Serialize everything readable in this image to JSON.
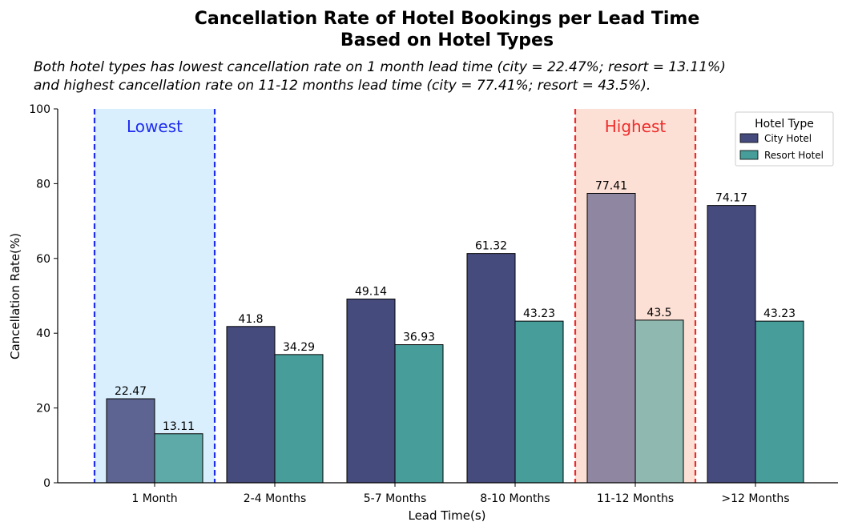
{
  "chart_data": {
    "type": "bar",
    "title_lines": [
      "Cancellation Rate of Hotel Bookings per Lead Time",
      "Based on Hotel Types"
    ],
    "subtitle_lines": [
      "Both hotel types has lowest cancellation rate on 1 month lead time (city = 22.47%; resort = 13.11%)",
      "and highest cancellation rate on 11-12 months lead time (city = 77.41%; resort = 43.5%)."
    ],
    "xlabel": "Lead Time(s)",
    "ylabel": "Cancellation Rate(%)",
    "ylim": [
      0,
      100
    ],
    "yticks": [
      0,
      20,
      40,
      60,
      80,
      100
    ],
    "categories": [
      "1 Month",
      "2-4 Months",
      "5-7 Months",
      "8-10 Months",
      "11-12 Months",
      ">12 Months"
    ],
    "series": [
      {
        "name": "City Hotel",
        "values": [
          22.47,
          41.8,
          49.14,
          61.32,
          77.41,
          74.17
        ],
        "color": "#464b7e"
      },
      {
        "name": "Resort Hotel",
        "values": [
          13.11,
          34.29,
          36.93,
          43.23,
          43.5,
          43.23
        ],
        "color": "#469d9a"
      }
    ],
    "value_labels": [
      [
        "22.47",
        "41.8",
        "49.14",
        "61.32",
        "77.41",
        "74.17"
      ],
      [
        "13.11",
        "34.29",
        "36.93",
        "43.23",
        "43.5",
        "43.23"
      ]
    ],
    "highlights": [
      {
        "label": "Lowest",
        "category": "1 Month",
        "fill": "#d9effd",
        "line": "#1f2cf0",
        "text_color": "#1f2cf0"
      },
      {
        "label": "Highest",
        "category": "11-12 Months",
        "fill": "#fde0d5",
        "line": "#ee2b2b",
        "text_color": "#ee2b2b"
      }
    ],
    "legend": {
      "title": "Hotel Type",
      "position": "top-right"
    },
    "grid": false
  }
}
